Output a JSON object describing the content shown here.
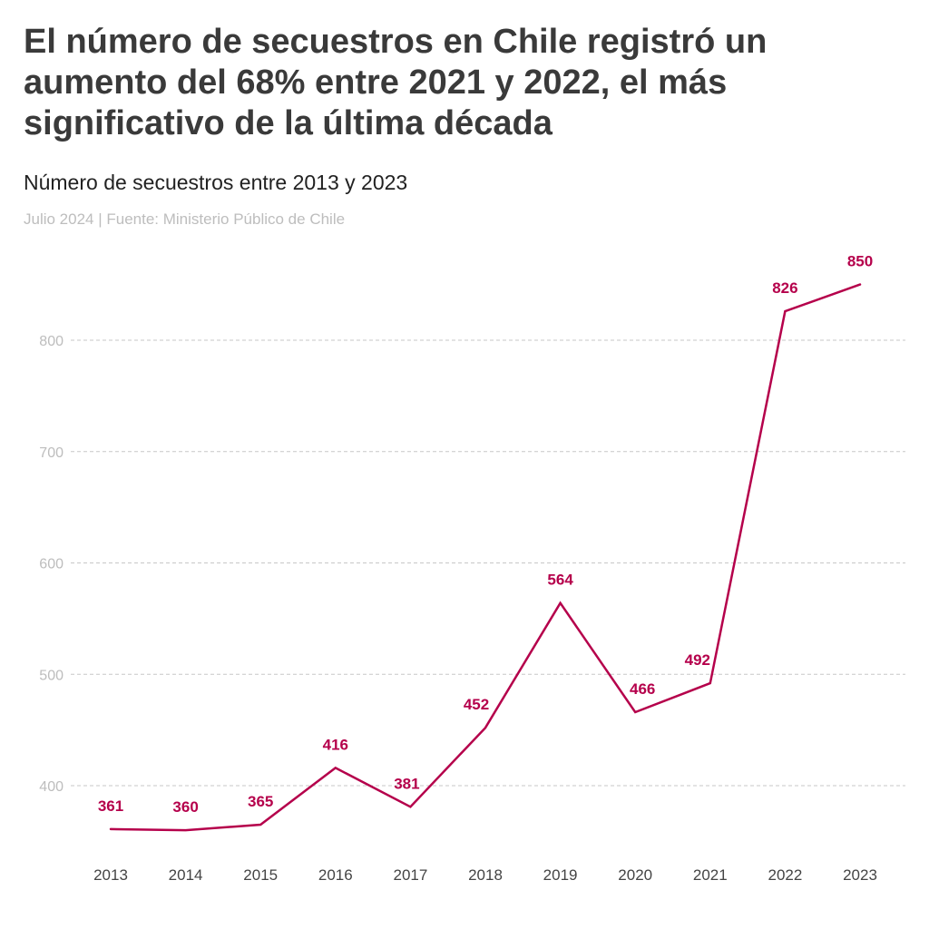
{
  "title": "El número de secuestros en Chile registró un aumento del 68% entre 2021 y 2022, el más significativo de la última década",
  "subtitle": "Número de secuestros entre 2013 y 2023",
  "source": "Julio 2024 | Fuente: Ministerio Público de Chile",
  "colors": {
    "line": "#b5004b",
    "grid": "#c7c7c7",
    "tick": "#bdbdbd"
  },
  "chart_data": {
    "type": "line",
    "x": [
      "2013",
      "2014",
      "2015",
      "2016",
      "2017",
      "2018",
      "2019",
      "2020",
      "2021",
      "2022",
      "2023"
    ],
    "series": [
      {
        "values": [
          361,
          360,
          365,
          416,
          381,
          452,
          564,
          466,
          492,
          826,
          850
        ]
      }
    ],
    "data_labels": [
      "361",
      "360",
      "365",
      "416",
      "381",
      "452",
      "564",
      "466",
      "492",
      "826",
      "850"
    ],
    "yticks": [
      400,
      500,
      600,
      700,
      800
    ],
    "ylim": [
      340,
      850
    ],
    "grid": true,
    "xlabel": "",
    "ylabel": ""
  }
}
